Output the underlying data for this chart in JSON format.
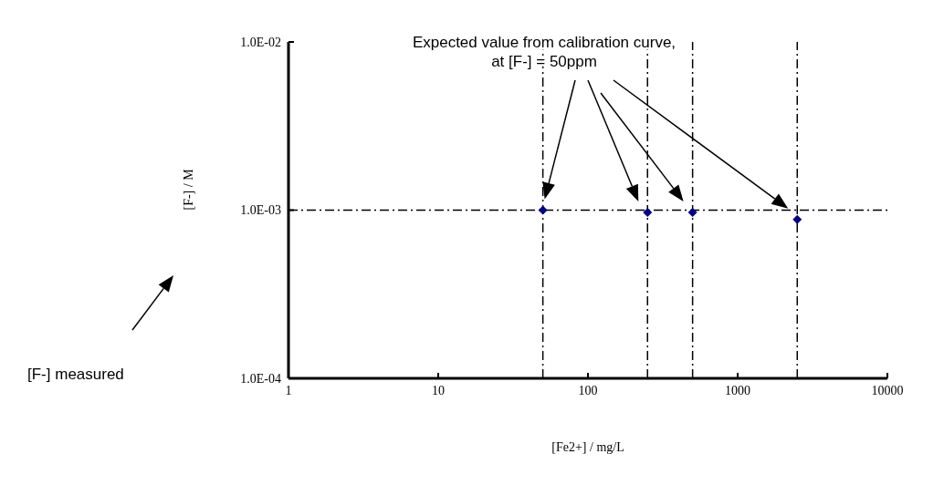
{
  "chart_data": {
    "type": "scatter",
    "xlabel": "[Fe2+] / mg/L",
    "ylabel": "[F-] / M",
    "x": [
      50,
      250,
      500,
      2500
    ],
    "series": [
      {
        "color": "#000080",
        "values": [
          0.001,
          0.00097,
          0.00097,
          0.00088
        ]
      }
    ],
    "log": "xy",
    "xlim": [
      1,
      10000
    ],
    "xticks": [
      1,
      10,
      100,
      1000,
      10000
    ],
    "ylim": [
      0.0001,
      0.01
    ],
    "yticks": [
      {
        "value": 0.0001,
        "label": "1.0E-04"
      },
      {
        "value": 0.001,
        "label": "1.0E-03"
      },
      {
        "value": 0.01,
        "label": "1.0E-02"
      }
    ],
    "marker": "diamond",
    "grid": false,
    "legend": false,
    "ref_lines": [
      {
        "axis": "x",
        "value": 50,
        "color": "#000000",
        "line_style": "dashed"
      },
      {
        "axis": "x",
        "value": 250,
        "color": "#000000",
        "line_style": "dashed"
      },
      {
        "axis": "x",
        "value": 500,
        "color": "#000000",
        "line_style": "dashed"
      },
      {
        "axis": "x",
        "value": 2500,
        "color": "#000000",
        "line_style": "dashed"
      },
      {
        "axis": "y",
        "value": 0.001,
        "color": "#000000",
        "line_style": "dashed"
      }
    ],
    "annotations": [
      "Expected value from calibration curve,\nat [F-] = 50ppm",
      "[F-] measured"
    ]
  }
}
